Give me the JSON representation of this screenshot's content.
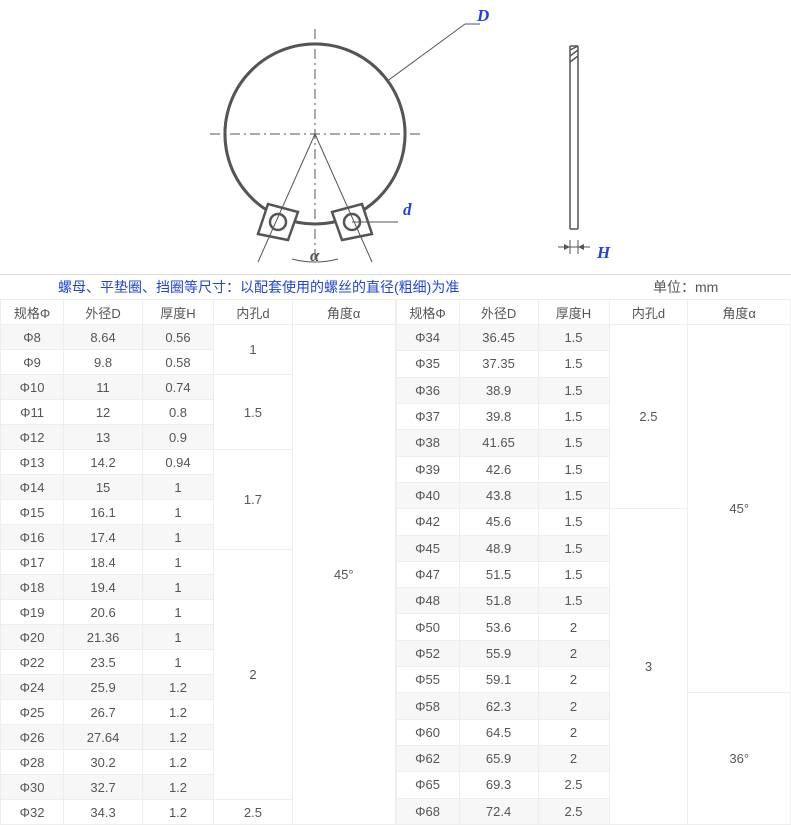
{
  "diagram": {
    "labels": {
      "D": "D",
      "d": "d",
      "H": "H",
      "alpha": "α"
    },
    "label_color": "#2244dd"
  },
  "header": {
    "note": "螺母、平垫圈、挡圈等尺寸：以配套使用的螺丝的直径(粗细)为准",
    "unit": "单位：mm"
  },
  "columns": {
    "spec": "规格Φ",
    "outerD": "外径D",
    "thickH": "厚度H",
    "innerd": "内孔d",
    "angle": "角度α"
  },
  "left": {
    "rows": [
      {
        "spec": "Φ8",
        "outerD": "8.64",
        "thickH": "0.56"
      },
      {
        "spec": "Φ9",
        "outerD": "9.8",
        "thickH": "0.58"
      },
      {
        "spec": "Φ10",
        "outerD": "11",
        "thickH": "0.74"
      },
      {
        "spec": "Φ11",
        "outerD": "12",
        "thickH": "0.8"
      },
      {
        "spec": "Φ12",
        "outerD": "13",
        "thickH": "0.9"
      },
      {
        "spec": "Φ13",
        "outerD": "14.2",
        "thickH": "0.94"
      },
      {
        "spec": "Φ14",
        "outerD": "15",
        "thickH": "1"
      },
      {
        "spec": "Φ15",
        "outerD": "16.1",
        "thickH": "1"
      },
      {
        "spec": "Φ16",
        "outerD": "17.4",
        "thickH": "1"
      },
      {
        "spec": "Φ17",
        "outerD": "18.4",
        "thickH": "1"
      },
      {
        "spec": "Φ18",
        "outerD": "19.4",
        "thickH": "1"
      },
      {
        "spec": "Φ19",
        "outerD": "20.6",
        "thickH": "1"
      },
      {
        "spec": "Φ20",
        "outerD": "21.36",
        "thickH": "1"
      },
      {
        "spec": "Φ22",
        "outerD": "23.5",
        "thickH": "1"
      },
      {
        "spec": "Φ24",
        "outerD": "25.9",
        "thickH": "1.2"
      },
      {
        "spec": "Φ25",
        "outerD": "26.7",
        "thickH": "1.2"
      },
      {
        "spec": "Φ26",
        "outerD": "27.64",
        "thickH": "1.2"
      },
      {
        "spec": "Φ28",
        "outerD": "30.2",
        "thickH": "1.2"
      },
      {
        "spec": "Φ30",
        "outerD": "32.7",
        "thickH": "1.2"
      },
      {
        "spec": "Φ32",
        "outerD": "34.3",
        "thickH": "1.2"
      }
    ],
    "innerd_groups": [
      {
        "val": "1",
        "span": 2
      },
      {
        "val": "1.5",
        "span": 3
      },
      {
        "val": "1.7",
        "span": 4
      },
      {
        "val": "2",
        "span": 10
      },
      {
        "val": "2.5",
        "span": 1
      }
    ],
    "angle_groups": [
      {
        "val": "45°",
        "span": 20
      }
    ]
  },
  "right": {
    "rows": [
      {
        "spec": "Φ34",
        "outerD": "36.45",
        "thickH": "1.5"
      },
      {
        "spec": "Φ35",
        "outerD": "37.35",
        "thickH": "1.5"
      },
      {
        "spec": "Φ36",
        "outerD": "38.9",
        "thickH": "1.5"
      },
      {
        "spec": "Φ37",
        "outerD": "39.8",
        "thickH": "1.5"
      },
      {
        "spec": "Φ38",
        "outerD": "41.65",
        "thickH": "1.5"
      },
      {
        "spec": "Φ39",
        "outerD": "42.6",
        "thickH": "1.5"
      },
      {
        "spec": "Φ40",
        "outerD": "43.8",
        "thickH": "1.5"
      },
      {
        "spec": "Φ42",
        "outerD": "45.6",
        "thickH": "1.5"
      },
      {
        "spec": "Φ45",
        "outerD": "48.9",
        "thickH": "1.5"
      },
      {
        "spec": "Φ47",
        "outerD": "51.5",
        "thickH": "1.5"
      },
      {
        "spec": "Φ48",
        "outerD": "51.8",
        "thickH": "1.5"
      },
      {
        "spec": "Φ50",
        "outerD": "53.6",
        "thickH": "2"
      },
      {
        "spec": "Φ52",
        "outerD": "55.9",
        "thickH": "2"
      },
      {
        "spec": "Φ55",
        "outerD": "59.1",
        "thickH": "2"
      },
      {
        "spec": "Φ58",
        "outerD": "62.3",
        "thickH": "2"
      },
      {
        "spec": "Φ60",
        "outerD": "64.5",
        "thickH": "2"
      },
      {
        "spec": "Φ62",
        "outerD": "65.9",
        "thickH": "2"
      },
      {
        "spec": "Φ65",
        "outerD": "69.3",
        "thickH": "2.5"
      },
      {
        "spec": "Φ68",
        "outerD": "72.4",
        "thickH": "2.5"
      }
    ],
    "innerd_groups": [
      {
        "val": "2.5",
        "span": 7
      },
      {
        "val": "3",
        "span": 12
      }
    ],
    "angle_groups": [
      {
        "val": "45°",
        "span": 14
      },
      {
        "val": "36°",
        "span": 5
      }
    ]
  }
}
